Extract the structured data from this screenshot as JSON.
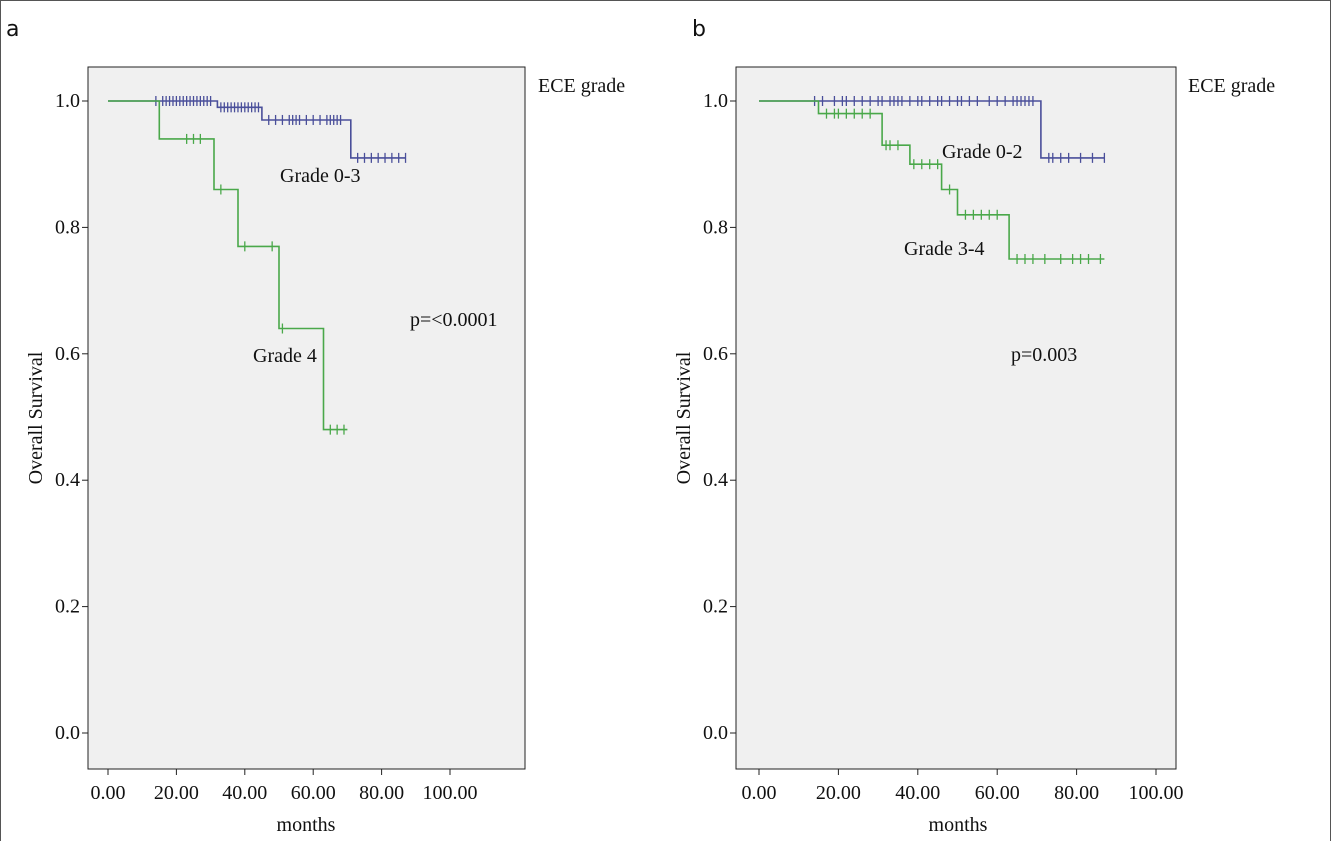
{
  "chart_data": [
    {
      "panel_label": "a",
      "type": "line",
      "legend_title": "ECE grade",
      "xlabel": "months",
      "ylabel": "Overall Survival",
      "xlim": [
        0,
        100
      ],
      "ylim": [
        0,
        1
      ],
      "xticks": [
        0,
        20,
        40,
        60,
        80,
        100
      ],
      "xtick_labels": [
        "0.00",
        "20.00",
        "40.00",
        "60.00",
        "80.00",
        "100.00"
      ],
      "yticks": [
        0,
        0.2,
        0.4,
        0.6,
        0.8,
        1.0
      ],
      "ytick_labels": [
        "0.0",
        "0.2",
        "0.4",
        "0.6",
        "0.8",
        "1.0"
      ],
      "grid": false,
      "annotations": [
        "p=<0.0001"
      ],
      "series": [
        {
          "name": "Grade 0-3",
          "color": "#4a4f9a",
          "steps": [
            [
              0,
              1.0
            ],
            [
              32,
              0.99
            ],
            [
              45,
              0.97
            ],
            [
              71,
              0.91
            ],
            [
              87,
              0.91
            ]
          ],
          "censored": [
            [
              14,
              1.0
            ],
            [
              16,
              1.0
            ],
            [
              17,
              1.0
            ],
            [
              18,
              1.0
            ],
            [
              19,
              1.0
            ],
            [
              20,
              1.0
            ],
            [
              21,
              1.0
            ],
            [
              22,
              1.0
            ],
            [
              23,
              1.0
            ],
            [
              24,
              1.0
            ],
            [
              25,
              1.0
            ],
            [
              26,
              1.0
            ],
            [
              27,
              1.0
            ],
            [
              28,
              1.0
            ],
            [
              29,
              1.0
            ],
            [
              30,
              1.0
            ],
            [
              33,
              0.99
            ],
            [
              34,
              0.99
            ],
            [
              35,
              0.99
            ],
            [
              36,
              0.99
            ],
            [
              37,
              0.99
            ],
            [
              38,
              0.99
            ],
            [
              39,
              0.99
            ],
            [
              40,
              0.99
            ],
            [
              41,
              0.99
            ],
            [
              42,
              0.99
            ],
            [
              43,
              0.99
            ],
            [
              44,
              0.99
            ],
            [
              47,
              0.97
            ],
            [
              49,
              0.97
            ],
            [
              51,
              0.97
            ],
            [
              53,
              0.97
            ],
            [
              54,
              0.97
            ],
            [
              55,
              0.97
            ],
            [
              56,
              0.97
            ],
            [
              58,
              0.97
            ],
            [
              60,
              0.97
            ],
            [
              62,
              0.97
            ],
            [
              64,
              0.97
            ],
            [
              65,
              0.97
            ],
            [
              66,
              0.97
            ],
            [
              67,
              0.97
            ],
            [
              68,
              0.97
            ],
            [
              73,
              0.91
            ],
            [
              75,
              0.91
            ],
            [
              77,
              0.91
            ],
            [
              79,
              0.91
            ],
            [
              81,
              0.91
            ],
            [
              83,
              0.91
            ],
            [
              85,
              0.91
            ],
            [
              87,
              0.91
            ]
          ]
        },
        {
          "name": "Grade 4",
          "color": "#4aa84a",
          "steps": [
            [
              0,
              1.0
            ],
            [
              15,
              0.94
            ],
            [
              31,
              0.86
            ],
            [
              38,
              0.77
            ],
            [
              50,
              0.64
            ],
            [
              63,
              0.48
            ],
            [
              70,
              0.48
            ]
          ],
          "censored": [
            [
              23,
              0.94
            ],
            [
              25,
              0.94
            ],
            [
              27,
              0.94
            ],
            [
              33,
              0.86
            ],
            [
              40,
              0.77
            ],
            [
              48,
              0.77
            ],
            [
              51,
              0.64
            ],
            [
              65,
              0.48
            ],
            [
              67,
              0.48
            ],
            [
              69,
              0.48
            ]
          ]
        }
      ]
    },
    {
      "panel_label": "b",
      "type": "line",
      "legend_title": "ECE grade",
      "xlabel": "months",
      "ylabel": "Overall Survival",
      "xlim": [
        0,
        100
      ],
      "ylim": [
        0,
        1
      ],
      "xticks": [
        0,
        20,
        40,
        60,
        80,
        100
      ],
      "xtick_labels": [
        "0.00",
        "20.00",
        "40.00",
        "60.00",
        "80.00",
        "100.00"
      ],
      "yticks": [
        0,
        0.2,
        0.4,
        0.6,
        0.8,
        1.0
      ],
      "ytick_labels": [
        "0.0",
        "0.2",
        "0.4",
        "0.6",
        "0.8",
        "1.0"
      ],
      "grid": false,
      "annotations": [
        "p=0.003"
      ],
      "series": [
        {
          "name": "Grade 0-2",
          "color": "#4a4f9a",
          "steps": [
            [
              0,
              1.0
            ],
            [
              71,
              0.91
            ],
            [
              87,
              0.91
            ]
          ],
          "censored": [
            [
              14,
              1.0
            ],
            [
              16,
              1.0
            ],
            [
              19,
              1.0
            ],
            [
              21,
              1.0
            ],
            [
              22,
              1.0
            ],
            [
              24,
              1.0
            ],
            [
              26,
              1.0
            ],
            [
              28,
              1.0
            ],
            [
              30,
              1.0
            ],
            [
              31,
              1.0
            ],
            [
              33,
              1.0
            ],
            [
              34,
              1.0
            ],
            [
              35,
              1.0
            ],
            [
              36,
              1.0
            ],
            [
              38,
              1.0
            ],
            [
              40,
              1.0
            ],
            [
              41,
              1.0
            ],
            [
              43,
              1.0
            ],
            [
              45,
              1.0
            ],
            [
              46,
              1.0
            ],
            [
              48,
              1.0
            ],
            [
              50,
              1.0
            ],
            [
              51,
              1.0
            ],
            [
              53,
              1.0
            ],
            [
              55,
              1.0
            ],
            [
              58,
              1.0
            ],
            [
              60,
              1.0
            ],
            [
              62,
              1.0
            ],
            [
              64,
              1.0
            ],
            [
              65,
              1.0
            ],
            [
              66,
              1.0
            ],
            [
              67,
              1.0
            ],
            [
              68,
              1.0
            ],
            [
              69,
              1.0
            ],
            [
              73,
              0.91
            ],
            [
              74,
              0.91
            ],
            [
              76,
              0.91
            ],
            [
              78,
              0.91
            ],
            [
              81,
              0.91
            ],
            [
              84,
              0.91
            ],
            [
              87,
              0.91
            ]
          ]
        },
        {
          "name": "Grade 3-4",
          "color": "#4aa84a",
          "steps": [
            [
              0,
              1.0
            ],
            [
              15,
              0.98
            ],
            [
              31,
              0.93
            ],
            [
              38,
              0.9
            ],
            [
              46,
              0.86
            ],
            [
              50,
              0.82
            ],
            [
              63,
              0.75
            ],
            [
              87,
              0.75
            ]
          ],
          "censored": [
            [
              17,
              0.98
            ],
            [
              19,
              0.98
            ],
            [
              20,
              0.98
            ],
            [
              22,
              0.98
            ],
            [
              24,
              0.98
            ],
            [
              26,
              0.98
            ],
            [
              28,
              0.98
            ],
            [
              32,
              0.93
            ],
            [
              33,
              0.93
            ],
            [
              35,
              0.93
            ],
            [
              39,
              0.9
            ],
            [
              41,
              0.9
            ],
            [
              43,
              0.9
            ],
            [
              45,
              0.9
            ],
            [
              48,
              0.86
            ],
            [
              52,
              0.82
            ],
            [
              54,
              0.82
            ],
            [
              56,
              0.82
            ],
            [
              58,
              0.82
            ],
            [
              60,
              0.82
            ],
            [
              65,
              0.75
            ],
            [
              67,
              0.75
            ],
            [
              69,
              0.75
            ],
            [
              72,
              0.75
            ],
            [
              76,
              0.75
            ],
            [
              79,
              0.75
            ],
            [
              81,
              0.75
            ],
            [
              83,
              0.75
            ],
            [
              86,
              0.75
            ]
          ]
        }
      ]
    }
  ]
}
